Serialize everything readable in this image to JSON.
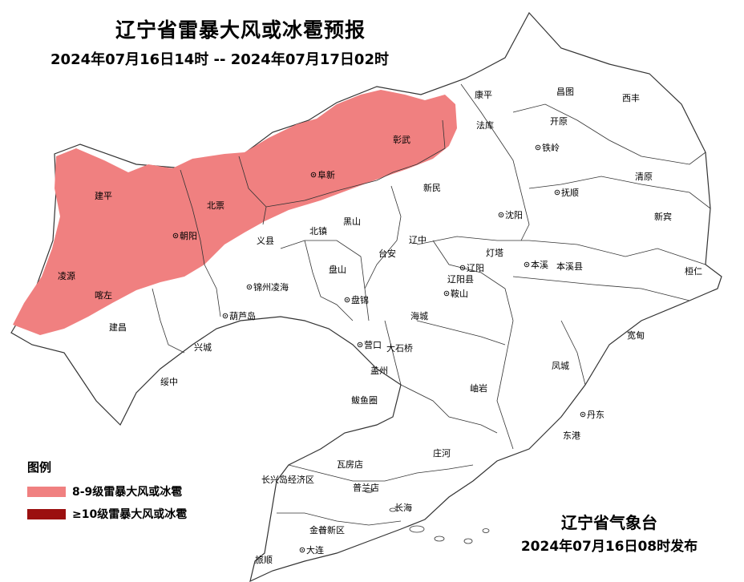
{
  "title": "辽宁省雷暴大风或冰雹预报",
  "subtitle": "2024年07月16日14时 -- 2024年07月17日02时",
  "legend": {
    "title": "图例",
    "items": [
      {
        "label": "8-9级雷暴大风或冰雹",
        "color": "#f08080"
      },
      {
        "label": "≥10级雷暴大风或冰雹",
        "color": "#9b1010"
      }
    ]
  },
  "issuer": {
    "name": "辽宁省气象台",
    "issue_time": "2024年07月16日08时发布"
  },
  "colors": {
    "warning_zone": "#f08080",
    "border": "#333333",
    "land": "#ffffff"
  },
  "cities": [
    {
      "name": "康平",
      "capital": false
    },
    {
      "name": "昌图",
      "capital": false
    },
    {
      "name": "西丰",
      "capital": false
    },
    {
      "name": "法库",
      "capital": false
    },
    {
      "name": "开原",
      "capital": false
    },
    {
      "name": "铁岭",
      "capital": true
    },
    {
      "name": "彰武",
      "capital": false
    },
    {
      "name": "阜新",
      "capital": true
    },
    {
      "name": "建平",
      "capital": false
    },
    {
      "name": "北票",
      "capital": false
    },
    {
      "name": "朝阳",
      "capital": true
    },
    {
      "name": "新民",
      "capital": false
    },
    {
      "name": "抚顺",
      "capital": true
    },
    {
      "name": "清原",
      "capital": false
    },
    {
      "name": "沈阳",
      "capital": true
    },
    {
      "name": "新宾",
      "capital": false
    },
    {
      "name": "黑山",
      "capital": false
    },
    {
      "name": "北镇",
      "capital": false
    },
    {
      "name": "义县",
      "capital": false
    },
    {
      "name": "辽中",
      "capital": false
    },
    {
      "name": "台安",
      "capital": false
    },
    {
      "name": "灯塔",
      "capital": false
    },
    {
      "name": "本溪",
      "capital": true
    },
    {
      "name": "本溪县",
      "capital": false
    },
    {
      "name": "辽阳",
      "capital": true
    },
    {
      "name": "辽阳县",
      "capital": false
    },
    {
      "name": "桓仁",
      "capital": false
    },
    {
      "name": "凌源",
      "capital": false
    },
    {
      "name": "盘山",
      "capital": false
    },
    {
      "name": "锦州凌海",
      "capital": true
    },
    {
      "name": "喀左",
      "capital": false
    },
    {
      "name": "鞍山",
      "capital": true
    },
    {
      "name": "盘锦",
      "capital": true
    },
    {
      "name": "葫芦岛",
      "capital": true
    },
    {
      "name": "海城",
      "capital": false
    },
    {
      "name": "建昌",
      "capital": false
    },
    {
      "name": "宽甸",
      "capital": false
    },
    {
      "name": "营口",
      "capital": true
    },
    {
      "name": "大石桥",
      "capital": false
    },
    {
      "name": "兴城",
      "capital": false
    },
    {
      "name": "凤城",
      "capital": false
    },
    {
      "name": "盖州",
      "capital": false
    },
    {
      "name": "绥中",
      "capital": false
    },
    {
      "name": "岫岩",
      "capital": false
    },
    {
      "name": "鲅鱼圈",
      "capital": false
    },
    {
      "name": "丹东",
      "capital": true
    },
    {
      "name": "东港",
      "capital": false
    },
    {
      "name": "庄河",
      "capital": false
    },
    {
      "name": "瓦房店",
      "capital": false
    },
    {
      "name": "长兴岛经济区",
      "capital": false
    },
    {
      "name": "普兰店",
      "capital": false
    },
    {
      "name": "长海",
      "capital": false
    },
    {
      "name": "金普新区",
      "capital": false
    },
    {
      "name": "大连",
      "capital": true
    },
    {
      "name": "旅顺",
      "capital": false
    }
  ]
}
